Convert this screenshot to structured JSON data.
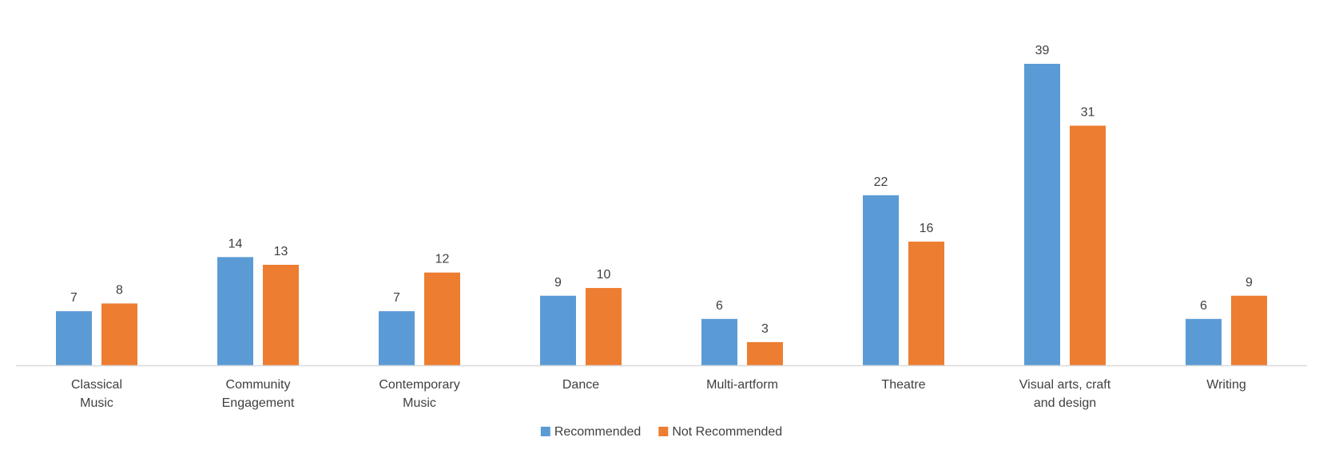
{
  "chart_data": {
    "type": "bar",
    "categories": [
      [
        "Classical",
        "Music"
      ],
      [
        "Community",
        "Engagement"
      ],
      [
        "Contemporary",
        "Music"
      ],
      [
        "Dance"
      ],
      [
        "Multi-artform"
      ],
      [
        "Theatre"
      ],
      [
        "Visual arts, craft",
        "and design"
      ],
      [
        "Writing"
      ]
    ],
    "series": [
      {
        "name": "Recommended",
        "color": "#5B9BD5",
        "values": [
          7,
          14,
          7,
          9,
          6,
          22,
          39,
          6
        ]
      },
      {
        "name": "Not Recommended",
        "color": "#ED7D31",
        "values": [
          8,
          13,
          12,
          10,
          3,
          16,
          31,
          9
        ]
      }
    ],
    "title": "",
    "xlabel": "",
    "ylabel": "",
    "ylim": [
      0,
      39
    ],
    "grid": false,
    "legend": "bottom-center",
    "data_labels": true
  }
}
